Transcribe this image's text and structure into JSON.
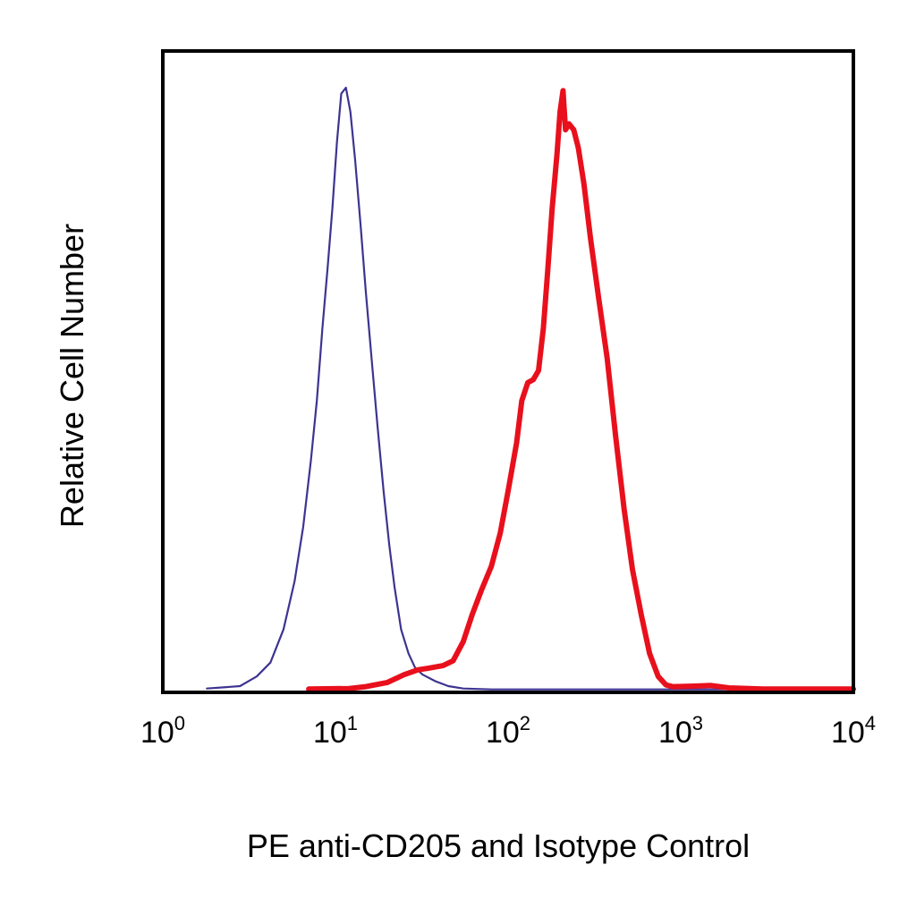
{
  "chart_data": {
    "type": "line",
    "title": "",
    "xlabel": "PE anti-CD205 and Isotype Control",
    "ylabel": "Relative Cell Number",
    "xscale": "log",
    "xlim": [
      1,
      10000
    ],
    "ylim": [
      0,
      100
    ],
    "grid": false,
    "legend": "none",
    "x_ticks": [
      {
        "base": "10",
        "exp": "0",
        "value": 1
      },
      {
        "base": "10",
        "exp": "1",
        "value": 10
      },
      {
        "base": "10",
        "exp": "2",
        "value": 100
      },
      {
        "base": "10",
        "exp": "3",
        "value": 1000
      },
      {
        "base": "10",
        "exp": "4",
        "value": 10000
      }
    ],
    "series": [
      {
        "color": "#3d3490",
        "stroke": "thin",
        "points": [
          [
            1.8,
            0.2
          ],
          [
            2.8,
            0.6
          ],
          [
            3.5,
            2.2
          ],
          [
            4.2,
            4.5
          ],
          [
            5.0,
            10
          ],
          [
            5.8,
            18
          ],
          [
            6.5,
            27
          ],
          [
            7.2,
            38
          ],
          [
            7.8,
            48
          ],
          [
            8.4,
            60
          ],
          [
            9.0,
            70
          ],
          [
            9.6,
            80
          ],
          [
            10.2,
            91
          ],
          [
            10.8,
            99
          ],
          [
            11.5,
            100
          ],
          [
            12.2,
            96
          ],
          [
            13.0,
            88
          ],
          [
            14.0,
            77
          ],
          [
            15.0,
            66
          ],
          [
            16.2,
            55
          ],
          [
            17.5,
            44
          ],
          [
            19.0,
            33
          ],
          [
            20.5,
            24
          ],
          [
            22.0,
            17
          ],
          [
            24.0,
            10
          ],
          [
            26.5,
            6
          ],
          [
            29.0,
            3.6
          ],
          [
            32.0,
            2.5
          ],
          [
            38.0,
            1.4
          ],
          [
            45.0,
            0.6
          ],
          [
            55.0,
            0.2
          ],
          [
            80.0,
            0.05
          ],
          [
            10000,
            0.05
          ]
        ]
      },
      {
        "color": "#e8101c",
        "stroke": "thick",
        "points": [
          [
            7,
            0.1
          ],
          [
            12,
            0.2
          ],
          [
            15,
            0.5
          ],
          [
            20,
            1.2
          ],
          [
            25,
            2.5
          ],
          [
            30,
            3.3
          ],
          [
            35,
            3.6
          ],
          [
            42,
            4.0
          ],
          [
            48,
            4.8
          ],
          [
            55,
            8
          ],
          [
            62,
            12.5
          ],
          [
            70,
            16.5
          ],
          [
            80,
            20.5
          ],
          [
            90,
            26
          ],
          [
            100,
            33
          ],
          [
            112,
            41
          ],
          [
            120,
            48
          ],
          [
            130,
            51
          ],
          [
            140,
            51.5
          ],
          [
            150,
            53
          ],
          [
            160,
            60
          ],
          [
            170,
            70
          ],
          [
            180,
            80
          ],
          [
            192,
            89
          ],
          [
            200,
            96
          ],
          [
            208,
            99.5
          ],
          [
            215,
            93
          ],
          [
            225,
            94
          ],
          [
            240,
            93
          ],
          [
            255,
            90
          ],
          [
            275,
            84
          ],
          [
            300,
            75
          ],
          [
            335,
            65
          ],
          [
            375,
            55
          ],
          [
            420,
            42
          ],
          [
            470,
            30
          ],
          [
            525,
            20
          ],
          [
            590,
            12.5
          ],
          [
            660,
            6
          ],
          [
            740,
            2.2
          ],
          [
            820,
            0.8
          ],
          [
            900,
            0.5
          ],
          [
            1200,
            0.6
          ],
          [
            1500,
            0.7
          ],
          [
            1900,
            0.3
          ],
          [
            3000,
            0.1
          ],
          [
            10000,
            0.1
          ]
        ]
      }
    ]
  }
}
